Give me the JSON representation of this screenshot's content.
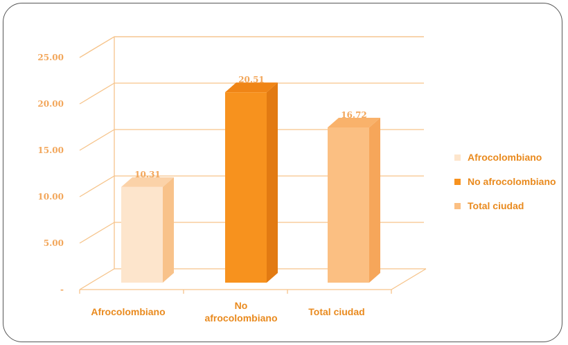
{
  "chart_data": {
    "type": "bar",
    "categories": [
      "Afrocolombiano",
      "No afrocolombiano",
      "Total ciudad"
    ],
    "category_label_lines": [
      [
        "Afrocolombiano"
      ],
      [
        "No",
        "afrocolombiano"
      ],
      [
        "Total ciudad"
      ]
    ],
    "values": [
      10.31,
      20.51,
      16.72
    ],
    "value_labels": [
      "10.31",
      "20.51",
      "16.72"
    ],
    "yticks": [
      0,
      5,
      10,
      15,
      20,
      25
    ],
    "ytick_labels": [
      "-",
      "5.00",
      "10.00",
      "15.00",
      "20.00",
      "25.00"
    ],
    "ylim": [
      0,
      25
    ],
    "grid": true,
    "legend_position": "right",
    "colors": {
      "front": [
        "#fde5cc",
        "#f7921e",
        "#fbbf82"
      ],
      "side": [
        "#f8c28a",
        "#e27a12",
        "#f6a65a"
      ],
      "top": [
        "#fbd2a8",
        "#f08516",
        "#f9b26b"
      ],
      "grid": "#f6c48b"
    }
  },
  "legend": {
    "items": [
      {
        "label": "Afrocolombiano",
        "color": "#fde5cc"
      },
      {
        "label": "No afrocolombiano",
        "color": "#f7921e"
      },
      {
        "label": "Total ciudad",
        "color": "#fbbf82"
      }
    ]
  }
}
